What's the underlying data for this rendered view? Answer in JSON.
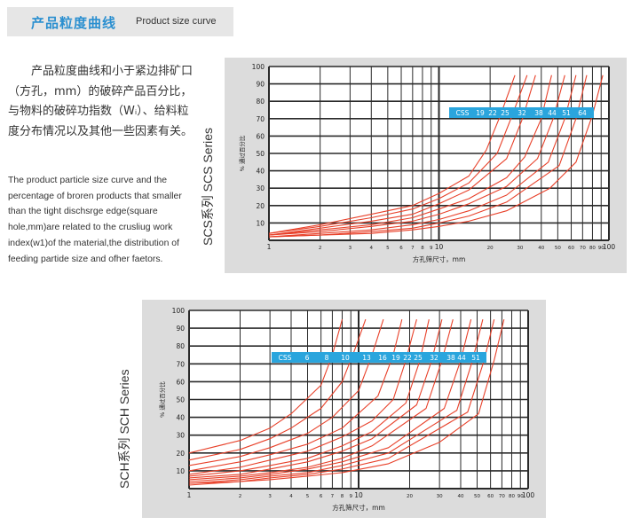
{
  "header": {
    "title_cn": "产品粒度曲线",
    "title_en": "Product size curve"
  },
  "description": {
    "cn": "产品粒度曲线和小于紧边排矿口（方孔，mm）的破碎产品百分比，与物料的破碎功指数（Wᵢ）、给料粒度分布情况以及其他一些因素有关。",
    "en": "The product particle size curve and the percentage of broren products that smaller than the tight dischsrge edge(square hole,mm)are related to the crusliug work index(w1)of the material,the distribution of feeding partide size and ofher faetors."
  },
  "chart_data": [
    {
      "type": "line",
      "series_label": "SCS系列  SCS Series",
      "ylabel": "% 通过百分比",
      "xlabel": "方孔筛尺寸，mm",
      "x_scale": "log",
      "xlim": [
        1,
        100
      ],
      "ylim": [
        0,
        100
      ],
      "x_ticks": [
        "1",
        "2",
        "3",
        "4",
        "5",
        "6",
        "7",
        "8",
        "9",
        "10",
        "20",
        "30",
        "40",
        "50",
        "60",
        "70",
        "80",
        "90",
        "100"
      ],
      "y_ticks": [
        "10",
        "20",
        "30",
        "40",
        "50",
        "60",
        "70",
        "80",
        "90",
        "100"
      ],
      "legend_label": "CSS",
      "series": [
        {
          "name": "19",
          "x": [
            1,
            2,
            4,
            7,
            10,
            15,
            19,
            23,
            28
          ],
          "y": [
            4,
            9,
            15,
            20,
            27,
            37,
            52,
            72,
            95
          ]
        },
        {
          "name": "22",
          "x": [
            1,
            2,
            4,
            7,
            10,
            15,
            22,
            27,
            33
          ],
          "y": [
            4,
            8,
            13,
            18,
            24,
            33,
            50,
            72,
            95
          ]
        },
        {
          "name": "25",
          "x": [
            1,
            2,
            4,
            7,
            10,
            15,
            25,
            31,
            37
          ],
          "y": [
            3,
            7,
            11,
            15,
            21,
            29,
            47,
            70,
            95
          ]
        },
        {
          "name": "32",
          "x": [
            1,
            2,
            4,
            7,
            10,
            15,
            25,
            32,
            40,
            46
          ],
          "y": [
            3,
            6,
            9,
            13,
            18,
            24,
            36,
            48,
            70,
            95
          ]
        },
        {
          "name": "38",
          "x": [
            1,
            2,
            4,
            7,
            10,
            15,
            25,
            38,
            47,
            55
          ],
          "y": [
            3,
            5,
            8,
            11,
            15,
            21,
            31,
            47,
            70,
            95
          ]
        },
        {
          "name": "44",
          "x": [
            1,
            2,
            4,
            7,
            10,
            15,
            25,
            44,
            55,
            64
          ],
          "y": [
            2,
            4,
            6,
            9,
            12,
            17,
            26,
            45,
            70,
            95
          ]
        },
        {
          "name": "51",
          "x": [
            1,
            2,
            4,
            7,
            10,
            15,
            25,
            51,
            64,
            74
          ],
          "y": [
            2,
            3,
            5,
            7,
            10,
            14,
            22,
            43,
            70,
            95
          ]
        },
        {
          "name": "64",
          "x": [
            1,
            2,
            4,
            7,
            10,
            15,
            25,
            45,
            64,
            80,
            92
          ],
          "y": [
            2,
            3,
            4,
            6,
            8,
            11,
            17,
            30,
            45,
            72,
            95
          ]
        }
      ]
    },
    {
      "type": "line",
      "series_label": "SCH系列  SCH Series",
      "ylabel": "% 通过百分比",
      "xlabel": "方孔筛尺寸，mm",
      "x_scale": "log",
      "xlim": [
        1,
        100
      ],
      "ylim": [
        0,
        100
      ],
      "x_ticks": [
        "1",
        "2",
        "3",
        "4",
        "5",
        "6",
        "7",
        "8",
        "9",
        "10",
        "20",
        "30",
        "40",
        "50",
        "60",
        "70",
        "80",
        "90",
        "100"
      ],
      "y_ticks": [
        "10",
        "20",
        "30",
        "40",
        "50",
        "60",
        "70",
        "80",
        "90",
        "100"
      ],
      "legend_label": "CSS",
      "series": [
        {
          "name": "6",
          "x": [
            1,
            2,
            3,
            4,
            6,
            7,
            8
          ],
          "y": [
            20,
            27,
            34,
            42,
            58,
            75,
            95
          ]
        },
        {
          "name": "8",
          "x": [
            1,
            2,
            3,
            4,
            6,
            8,
            9.5,
            11
          ],
          "y": [
            16,
            22,
            28,
            34,
            45,
            60,
            78,
            95
          ]
        },
        {
          "name": "10",
          "x": [
            1,
            2,
            3,
            5,
            7,
            10,
            12,
            14
          ],
          "y": [
            13,
            18,
            23,
            31,
            40,
            55,
            75,
            95
          ]
        },
        {
          "name": "13",
          "x": [
            1,
            2,
            3,
            5,
            8,
            13,
            16,
            18
          ],
          "y": [
            10,
            15,
            19,
            25,
            34,
            52,
            75,
            95
          ]
        },
        {
          "name": "16",
          "x": [
            1,
            2,
            3,
            5,
            8,
            12,
            16,
            19,
            22
          ],
          "y": [
            8,
            12,
            16,
            21,
            29,
            38,
            50,
            72,
            95
          ]
        },
        {
          "name": "19",
          "x": [
            1,
            2,
            3,
            5,
            8,
            12,
            19,
            23,
            26
          ],
          "y": [
            7,
            10,
            13,
            17,
            24,
            32,
            48,
            72,
            95
          ]
        },
        {
          "name": "22",
          "x": [
            1,
            2,
            3,
            5,
            8,
            12,
            22,
            27,
            31
          ],
          "y": [
            6,
            8,
            11,
            15,
            21,
            28,
            47,
            72,
            95
          ]
        },
        {
          "name": "25",
          "x": [
            1,
            2,
            3,
            5,
            8,
            12,
            25,
            31,
            36
          ],
          "y": [
            5,
            7,
            9,
            12,
            17,
            24,
            45,
            72,
            95
          ]
        },
        {
          "name": "32",
          "x": [
            1,
            2,
            3,
            5,
            8,
            15,
            32,
            40,
            46
          ],
          "y": [
            4,
            6,
            8,
            11,
            15,
            23,
            45,
            72,
            95
          ]
        },
        {
          "name": "38",
          "x": [
            1,
            2,
            3,
            5,
            8,
            15,
            38,
            47,
            54
          ],
          "y": [
            3,
            5,
            7,
            9,
            13,
            20,
            44,
            72,
            95
          ]
        },
        {
          "name": "44",
          "x": [
            1,
            2,
            3,
            5,
            8,
            15,
            44,
            55,
            63
          ],
          "y": [
            3,
            4,
            6,
            8,
            11,
            17,
            43,
            72,
            95
          ]
        },
        {
          "name": "51",
          "x": [
            1,
            2,
            3,
            5,
            8,
            15,
            30,
            51,
            63,
            72
          ],
          "y": [
            2,
            4,
            5,
            7,
            9,
            14,
            26,
            42,
            72,
            95
          ]
        }
      ]
    }
  ],
  "colors": {
    "accent": "#2a8fd0",
    "curve": "#e8412a",
    "panel": "#dcdcdc",
    "legend_bar": "#2aa5dd"
  }
}
